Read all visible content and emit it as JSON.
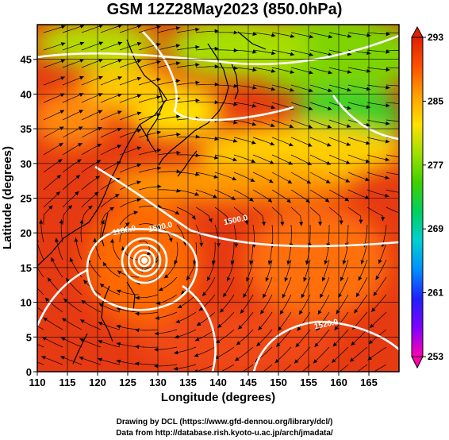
{
  "title": "GSM 12Z28May2023 (850.0hPa)",
  "credits": {
    "line1": "Drawing by DCL (https://www.gfd-dennou.org/library/dcl/)",
    "line2": "Data from http://database.rish.kyoto-u.ac.jp/arch/jmadata/"
  },
  "chart_data": {
    "type": "map",
    "xlabel": "Longitude (degrees)",
    "ylabel": "Latitude (degrees)",
    "xlim": [
      110,
      170
    ],
    "ylim": [
      0,
      50
    ],
    "x_ticks": [
      110,
      115,
      120,
      125,
      130,
      135,
      140,
      145,
      150,
      155,
      160,
      165
    ],
    "y_ticks": [
      0,
      5,
      10,
      15,
      20,
      25,
      30,
      35,
      40,
      45
    ],
    "colorbar": {
      "min": 253,
      "max": 293,
      "ticks": [
        293,
        285,
        277,
        269,
        261,
        253
      ],
      "colors": [
        "#ff00b0",
        "#8000ff",
        "#2020ff",
        "#0090ff",
        "#00d0d0",
        "#00d060",
        "#40d000",
        "#a0e000",
        "#ffe000",
        "#ffa000",
        "#ff5000",
        "#e02000"
      ]
    },
    "contour_labels": [
      {
        "text": "1180.0",
        "lon": 124.5,
        "lat": 20.0
      },
      {
        "text": "1500.0",
        "lon": 130.5,
        "lat": 20.5
      },
      {
        "text": "1500.0",
        "lon": 143.0,
        "lat": 21.5
      },
      {
        "text": "1520.0",
        "lon": 158.0,
        "lat": 6.5
      }
    ],
    "cyclone_center": {
      "lon": 127,
      "lat": 18
    }
  }
}
